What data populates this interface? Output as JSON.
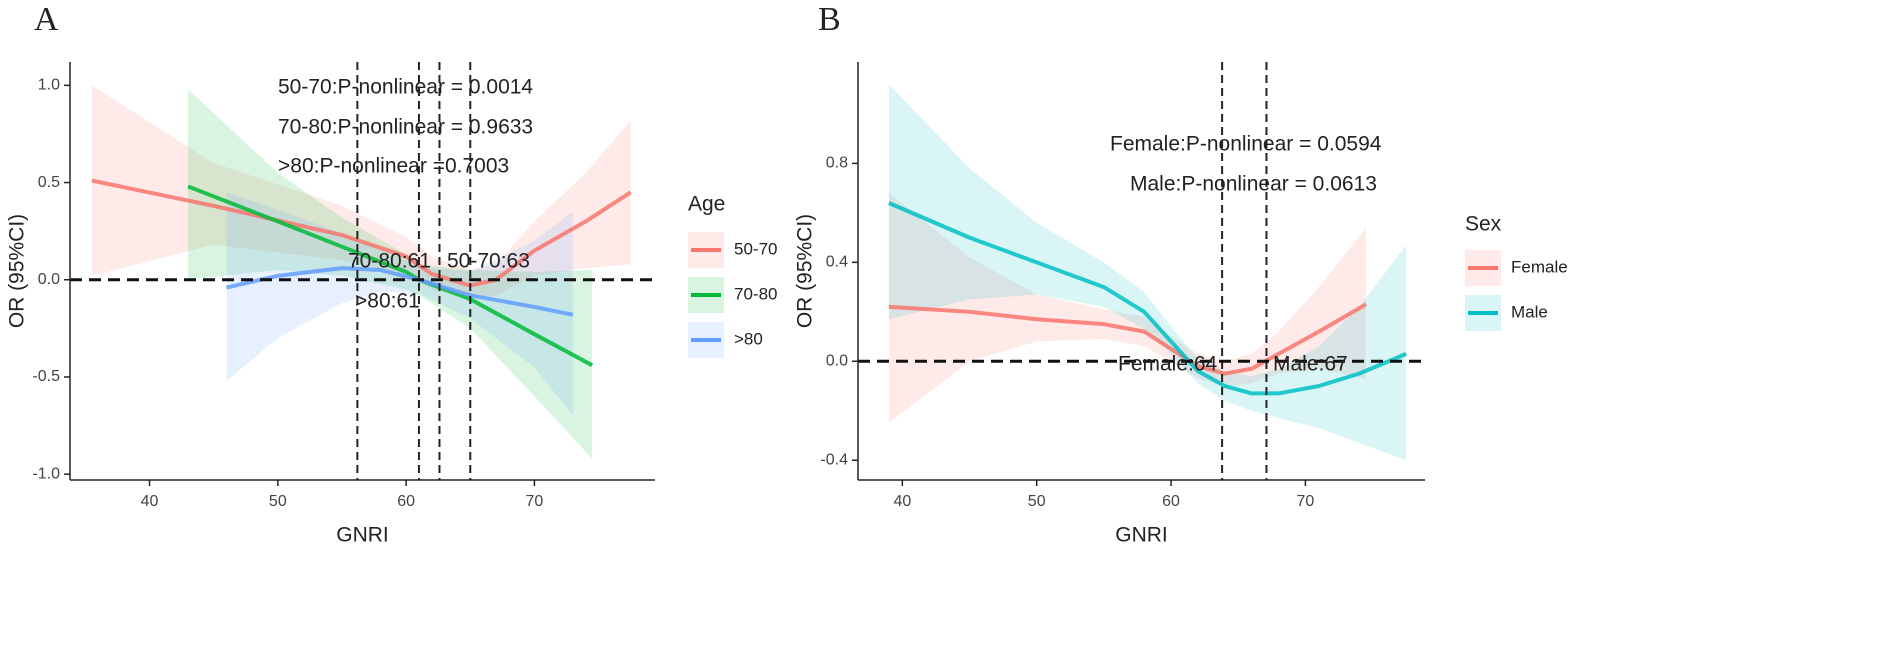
{
  "chart_data": [
    {
      "type": "line",
      "panel": "A",
      "xlabel": "GNRI",
      "ylabel": "OR (95%CI)",
      "legend_title": "Age",
      "xlim": [
        33.8,
        79.4
      ],
      "ylim": [
        -1.03,
        1.12
      ],
      "xticks": [
        40,
        50,
        60,
        70
      ],
      "yticks": [
        {
          "value": 1.0,
          "label": "1.0"
        },
        {
          "value": 0.5,
          "label": "0.5"
        },
        {
          "value": 0.0,
          "label": "0.0"
        },
        {
          "value": -0.5,
          "label": "-0.5"
        },
        {
          "value": -1.0,
          "label": "-1.0"
        }
      ],
      "hline": 0,
      "vlines": [
        56.2,
        61,
        62.6,
        65
      ],
      "annotations": [
        "50-70:P-nonlinear = 0.0014",
        "70-80:P-nonlinear = 0.9633",
        ">80:P-nonlinear =0.7003",
        "70-80:61",
        "50-70:63",
        ">80:61"
      ],
      "series": [
        {
          "name": "50-70",
          "color": "#F8766D",
          "x": [
            35.5,
            45,
            55,
            60,
            62,
            65,
            67,
            70,
            74,
            77.5
          ],
          "values": [
            0.51,
            0.38,
            0.23,
            0.12,
            0.03,
            -0.03,
            0,
            0.15,
            0.3,
            0.45
          ],
          "lower": [
            0.02,
            0.18,
            0.1,
            0.03,
            -0.05,
            -0.1,
            -0.08,
            0.02,
            0.06,
            0.08
          ],
          "upper": [
            1.0,
            0.6,
            0.38,
            0.22,
            0.12,
            0.05,
            0.08,
            0.3,
            0.55,
            0.82
          ]
        },
        {
          "name": "70-80",
          "color": "#00BA38",
          "x": [
            43,
            50,
            55,
            60,
            61,
            65,
            70,
            74.5
          ],
          "values": [
            0.48,
            0.3,
            0.17,
            0.04,
            0,
            -0.1,
            -0.28,
            -0.44
          ],
          "lower": [
            0,
            0.05,
            0.02,
            -0.05,
            -0.08,
            -0.25,
            -0.6,
            -0.92
          ],
          "upper": [
            0.98,
            0.55,
            0.32,
            0.13,
            0.08,
            0.05,
            0.04,
            0.05
          ]
        },
        {
          "name": ">80",
          "color": "#619CFF",
          "x": [
            46,
            50,
            55,
            58,
            61,
            65,
            70,
            73
          ],
          "values": [
            -0.04,
            0.02,
            0.06,
            0.05,
            0,
            -0.08,
            -0.14,
            -0.18
          ],
          "lower": [
            -0.52,
            -0.3,
            -0.12,
            -0.06,
            -0.07,
            -0.2,
            -0.45,
            -0.7
          ],
          "upper": [
            0.45,
            0.36,
            0.24,
            0.16,
            0.07,
            0.04,
            0.2,
            0.35
          ]
        }
      ]
    },
    {
      "type": "line",
      "panel": "B",
      "xlabel": "GNRI",
      "ylabel": "OR (95%CI)",
      "legend_title": "Sex",
      "xlim": [
        36.7,
        78.9
      ],
      "ylim": [
        -0.48,
        1.21
      ],
      "xticks": [
        40,
        50,
        60,
        70
      ],
      "yticks": [
        0.8,
        0.4,
        {
          "value": 0.0,
          "label": "0.0"
        },
        -0.4
      ],
      "hline": 0,
      "vlines": [
        63.8,
        67.1
      ],
      "annotations": [
        "Female:P-nonlinear = 0.0594",
        "Male:P-nonlinear = 0.0613",
        "Female:64",
        "Male:67"
      ],
      "series": [
        {
          "name": "Female",
          "color": "#F8766D",
          "x": [
            39,
            45,
            50,
            55,
            58,
            60,
            62,
            64,
            66,
            68,
            71,
            74.5
          ],
          "values": [
            0.22,
            0.2,
            0.17,
            0.15,
            0.12,
            0.05,
            -0.02,
            -0.05,
            -0.03,
            0.03,
            0.12,
            0.23
          ],
          "lower": [
            -0.25,
            0.0,
            0.08,
            0.09,
            0.06,
            0.0,
            -0.07,
            -0.1,
            -0.09,
            -0.05,
            -0.03,
            -0.07
          ],
          "upper": [
            0.68,
            0.42,
            0.27,
            0.21,
            0.18,
            0.1,
            0.03,
            0.0,
            0.03,
            0.12,
            0.3,
            0.54
          ]
        },
        {
          "name": "Male",
          "color": "#00BFC4",
          "x": [
            39,
            45,
            50,
            55,
            58,
            60,
            62,
            64,
            66,
            68,
            71,
            74,
            77.5
          ],
          "values": [
            0.64,
            0.5,
            0.4,
            0.3,
            0.2,
            0.08,
            -0.04,
            -0.1,
            -0.13,
            -0.13,
            -0.1,
            -0.05,
            0.03
          ],
          "lower": [
            0.17,
            0.25,
            0.27,
            0.22,
            0.13,
            0.03,
            -0.09,
            -0.16,
            -0.2,
            -0.23,
            -0.27,
            -0.33,
            -0.4
          ],
          "upper": [
            1.12,
            0.78,
            0.56,
            0.4,
            0.28,
            0.14,
            0.01,
            -0.04,
            -0.06,
            -0.03,
            0.06,
            0.22,
            0.47
          ]
        }
      ]
    }
  ]
}
